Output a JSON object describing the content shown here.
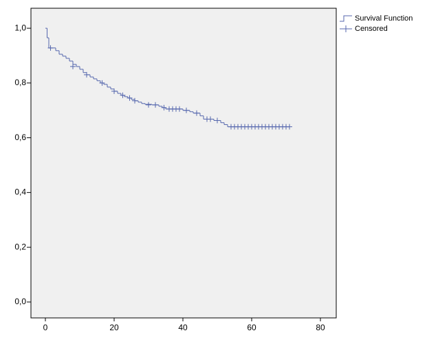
{
  "chart_data": {
    "type": "survival",
    "xlim": [
      -4.2,
      84.6
    ],
    "ylim": [
      -0.058,
      1.073
    ],
    "xticks": [
      0,
      20,
      40,
      60,
      80
    ],
    "yticks": [
      {
        "value": 0,
        "label": "0,0"
      },
      {
        "value": 0.2,
        "label": "0,2"
      },
      {
        "value": 0.4,
        "label": "0,4"
      },
      {
        "value": 0.6,
        "label": "0,6"
      },
      {
        "value": 0.8,
        "label": "0,8"
      },
      {
        "value": 1,
        "label": "1,0"
      }
    ],
    "legend": "outside-top-right",
    "series": [
      {
        "name": "Survival Function",
        "color": "#5466ad",
        "step": "post",
        "x": [
          0,
          0.5,
          1,
          3,
          4,
          5,
          6,
          7,
          8,
          9,
          10,
          11,
          12,
          13,
          14,
          15,
          16,
          17,
          18,
          19,
          20,
          21,
          22,
          23,
          24,
          25,
          26,
          27,
          28,
          29,
          31,
          33,
          34,
          35,
          40,
          42,
          43,
          45,
          46,
          49,
          51,
          52,
          53,
          71
        ],
        "values": [
          1.0,
          0.965,
          0.928,
          0.918,
          0.905,
          0.898,
          0.89,
          0.88,
          0.868,
          0.86,
          0.85,
          0.838,
          0.83,
          0.822,
          0.815,
          0.808,
          0.8,
          0.795,
          0.785,
          0.778,
          0.77,
          0.762,
          0.755,
          0.75,
          0.745,
          0.74,
          0.735,
          0.73,
          0.725,
          0.722,
          0.72,
          0.715,
          0.71,
          0.705,
          0.7,
          0.695,
          0.69,
          0.68,
          0.668,
          0.663,
          0.655,
          0.648,
          0.64,
          0.64
        ]
      },
      {
        "name": "Censored",
        "color": "#5466ad",
        "marker": "plus",
        "x": [
          1.5,
          8,
          12,
          16.5,
          20,
          22.5,
          24.5,
          26,
          30,
          32,
          34.5,
          36,
          37,
          38,
          39,
          41,
          44,
          47,
          48,
          50,
          54,
          55,
          56,
          57,
          58,
          59,
          60,
          61,
          62,
          63,
          64,
          65,
          66,
          67,
          68,
          69,
          70,
          71
        ],
        "values": [
          0.928,
          0.86,
          0.83,
          0.8,
          0.77,
          0.755,
          0.745,
          0.735,
          0.72,
          0.72,
          0.71,
          0.705,
          0.705,
          0.705,
          0.705,
          0.7,
          0.69,
          0.668,
          0.668,
          0.663,
          0.64,
          0.64,
          0.64,
          0.64,
          0.64,
          0.64,
          0.64,
          0.64,
          0.64,
          0.64,
          0.64,
          0.64,
          0.64,
          0.64,
          0.64,
          0.64,
          0.64,
          0.64
        ]
      }
    ]
  }
}
